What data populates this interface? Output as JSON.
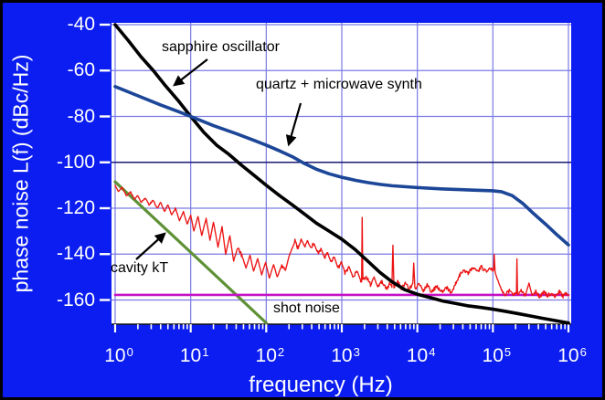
{
  "axes": {
    "x_label": "frequency (Hz)",
    "y_label": "phase noise L(f) (dBc/Hz)",
    "x_tick_base": "10",
    "x_tick_exponents": [
      "0",
      "1",
      "2",
      "3",
      "4",
      "5",
      "6"
    ],
    "y_tick_labels": [
      "-40",
      "-60",
      "-80",
      "-100",
      "-120",
      "-140",
      "-160"
    ],
    "dark_horizontal_line_at": -100
  },
  "annotations": {
    "sapphire_label": "sapphire oscillator",
    "quartz_label": "quartz + microwave synth",
    "cavity_label": "cavity kT",
    "shot_label": "shot noise"
  },
  "colors": {
    "background": "#0b1df0",
    "plot_background": "#ffffff",
    "grid": "#7a7ae4",
    "grid_dark": "#1a1a72",
    "axis_line": "#101010",
    "tick": "#ffffff",
    "text": "#ffffff",
    "annotation_text": "#000000",
    "sapphire": "#000000",
    "quartz": "#1c4697",
    "cavity": "#5e9136",
    "shot": "#c512c5",
    "measured": "#ec1313"
  },
  "chart_data": {
    "type": "line",
    "xscale": "log",
    "xlabel": "frequency (Hz)",
    "ylabel": "phase noise L(f) (dBc/Hz)",
    "xlim": [
      1,
      1000000
    ],
    "ylim": [
      -170,
      -40
    ],
    "grid": true,
    "series": [
      {
        "name": "cavity kT",
        "color_key": "cavity",
        "points": [
          [
            1,
            -108.5
          ],
          [
            10,
            -139.2
          ],
          [
            100,
            -170
          ]
        ]
      },
      {
        "name": "shot noise",
        "color_key": "shot",
        "points": [
          [
            1,
            -157.8
          ],
          [
            1000000,
            -157.8
          ]
        ]
      },
      {
        "name": "measured phase noise",
        "color_key": "measured",
        "points": [
          [
            1,
            -110
          ],
          [
            1.1,
            -112.5
          ],
          [
            1.25,
            -111
          ],
          [
            1.4,
            -114.5
          ],
          [
            1.6,
            -113
          ],
          [
            1.8,
            -116
          ],
          [
            2.0,
            -114.5
          ],
          [
            2.2,
            -117.5
          ],
          [
            2.5,
            -115.5
          ],
          [
            2.8,
            -118.5
          ],
          [
            3.2,
            -116.5
          ],
          [
            3.6,
            -120
          ],
          [
            4.0,
            -117.5
          ],
          [
            4.5,
            -121.5
          ],
          [
            5.0,
            -118.5
          ],
          [
            5.6,
            -123
          ],
          [
            6.3,
            -120
          ],
          [
            7.1,
            -125.5
          ],
          [
            8.0,
            -121.5
          ],
          [
            9.0,
            -127
          ],
          [
            10,
            -123
          ],
          [
            11,
            -130
          ],
          [
            12.5,
            -123.5
          ],
          [
            14,
            -132
          ],
          [
            16,
            -124.5
          ],
          [
            18,
            -134
          ],
          [
            20,
            -126
          ],
          [
            23,
            -137
          ],
          [
            26,
            -128
          ],
          [
            29,
            -140
          ],
          [
            33,
            -132
          ],
          [
            37,
            -143
          ],
          [
            42,
            -137
          ],
          [
            48,
            -141
          ],
          [
            54,
            -146
          ],
          [
            61,
            -140.5
          ],
          [
            68,
            -147.5
          ],
          [
            77,
            -142
          ],
          [
            87,
            -149
          ],
          [
            98,
            -143.5
          ],
          [
            110,
            -150.5
          ],
          [
            125,
            -144.5
          ],
          [
            140,
            -150
          ],
          [
            160,
            -145
          ],
          [
            180,
            -147
          ],
          [
            200,
            -141
          ],
          [
            220,
            -137.5
          ],
          [
            240,
            -134.5
          ],
          [
            265,
            -137.5
          ],
          [
            290,
            -133.5
          ],
          [
            320,
            -136.5
          ],
          [
            350,
            -134
          ],
          [
            390,
            -137.5
          ],
          [
            430,
            -135.5
          ],
          [
            480,
            -139.5
          ],
          [
            530,
            -137.5
          ],
          [
            590,
            -141.5
          ],
          [
            650,
            -139.5
          ],
          [
            720,
            -143.5
          ],
          [
            800,
            -141.5
          ],
          [
            890,
            -146
          ],
          [
            990,
            -143.5
          ],
          [
            1100,
            -148
          ],
          [
            1250,
            -145.5
          ],
          [
            1400,
            -150
          ],
          [
            1600,
            -147.5
          ],
          [
            1780,
            -151.5
          ],
          [
            1830,
            -152
          ],
          [
            1860,
            -124
          ],
          [
            1900,
            -151.5
          ],
          [
            2100,
            -149.5
          ],
          [
            2400,
            -153.5
          ],
          [
            2700,
            -150.5
          ],
          [
            3000,
            -154.5
          ],
          [
            3400,
            -152
          ],
          [
            3900,
            -155
          ],
          [
            4300,
            -153
          ],
          [
            4600,
            -154.5
          ],
          [
            4750,
            -136
          ],
          [
            4900,
            -154
          ],
          [
            5500,
            -152
          ],
          [
            6200,
            -155
          ],
          [
            7000,
            -152.5
          ],
          [
            7800,
            -155.5
          ],
          [
            8700,
            -153
          ],
          [
            8950,
            -144
          ],
          [
            9300,
            -155
          ],
          [
            10500,
            -153.5
          ],
          [
            12000,
            -156
          ],
          [
            13500,
            -153.5
          ],
          [
            15500,
            -156.5
          ],
          [
            18000,
            -154
          ],
          [
            21000,
            -156.5
          ],
          [
            24000,
            -154.5
          ],
          [
            28000,
            -156.5
          ],
          [
            32000,
            -153
          ],
          [
            36000,
            -149.5
          ],
          [
            41000,
            -146.5
          ],
          [
            47000,
            -148.5
          ],
          [
            54000,
            -145.8
          ],
          [
            62000,
            -148
          ],
          [
            71000,
            -145.5
          ],
          [
            81000,
            -147.8
          ],
          [
            92000,
            -146
          ],
          [
            102000,
            -147
          ],
          [
            104000,
            -140
          ],
          [
            107000,
            -148
          ],
          [
            115000,
            -151
          ],
          [
            130000,
            -155.5
          ],
          [
            145000,
            -157.5
          ],
          [
            165000,
            -156
          ],
          [
            185000,
            -158
          ],
          [
            205000,
            -157
          ],
          [
            208000,
            -142
          ],
          [
            212000,
            -157.5
          ],
          [
            240000,
            -156
          ],
          [
            270000,
            -158
          ],
          [
            300000,
            -152.5
          ],
          [
            330000,
            -158
          ],
          [
            370000,
            -156.5
          ],
          [
            420000,
            -158.5
          ],
          [
            470000,
            -156.5
          ],
          [
            530000,
            -158
          ],
          [
            600000,
            -157
          ],
          [
            680000,
            -158.5
          ],
          [
            760000,
            -156.5
          ],
          [
            850000,
            -158.5
          ],
          [
            940000,
            -157
          ],
          [
            1000000,
            -157.8
          ]
        ]
      },
      {
        "name": "sapphire oscillator",
        "color_key": "sapphire",
        "points": [
          [
            1,
            -40
          ],
          [
            1.5,
            -47
          ],
          [
            2.2,
            -54
          ],
          [
            3.2,
            -60
          ],
          [
            4.6,
            -66.5
          ],
          [
            6.8,
            -73
          ],
          [
            10,
            -80
          ],
          [
            15,
            -87
          ],
          [
            22,
            -92.5
          ],
          [
            32,
            -96.5
          ],
          [
            46,
            -101
          ],
          [
            68,
            -105.5
          ],
          [
            100,
            -110
          ],
          [
            150,
            -114.5
          ],
          [
            220,
            -118.5
          ],
          [
            320,
            -122.5
          ],
          [
            460,
            -126.5
          ],
          [
            680,
            -130
          ],
          [
            1000,
            -133.5
          ],
          [
            1500,
            -138
          ],
          [
            2200,
            -143
          ],
          [
            3200,
            -148
          ],
          [
            4600,
            -152
          ],
          [
            6800,
            -155.5
          ],
          [
            10000,
            -157.5
          ],
          [
            15000,
            -159
          ],
          [
            22000,
            -160.5
          ],
          [
            32000,
            -161.5
          ],
          [
            46000,
            -162.5
          ],
          [
            68000,
            -163.2
          ],
          [
            100000,
            -164
          ],
          [
            150000,
            -165
          ],
          [
            220000,
            -166
          ],
          [
            320000,
            -167
          ],
          [
            460000,
            -168
          ],
          [
            680000,
            -169
          ],
          [
            1000000,
            -170
          ]
        ]
      },
      {
        "name": "quartz + microwave synth",
        "color_key": "quartz",
        "points": [
          [
            1,
            -67
          ],
          [
            2,
            -71
          ],
          [
            4,
            -75
          ],
          [
            7,
            -78
          ],
          [
            10,
            -80
          ],
          [
            20,
            -84
          ],
          [
            40,
            -87.5
          ],
          [
            70,
            -90.5
          ],
          [
            100,
            -92.5
          ],
          [
            150,
            -95
          ],
          [
            220,
            -97.5
          ],
          [
            320,
            -100.5
          ],
          [
            460,
            -103
          ],
          [
            680,
            -105
          ],
          [
            1000,
            -106.5
          ],
          [
            1500,
            -107.8
          ],
          [
            2200,
            -108.8
          ],
          [
            3200,
            -109.6
          ],
          [
            4600,
            -110.2
          ],
          [
            10000,
            -111
          ],
          [
            22000,
            -111.6
          ],
          [
            46000,
            -112
          ],
          [
            100000,
            -112.4
          ],
          [
            130000,
            -112.8
          ],
          [
            180000,
            -114.5
          ],
          [
            250000,
            -118
          ],
          [
            350000,
            -122.5
          ],
          [
            500000,
            -127
          ],
          [
            700000,
            -131.5
          ],
          [
            1000000,
            -136
          ]
        ]
      }
    ]
  }
}
